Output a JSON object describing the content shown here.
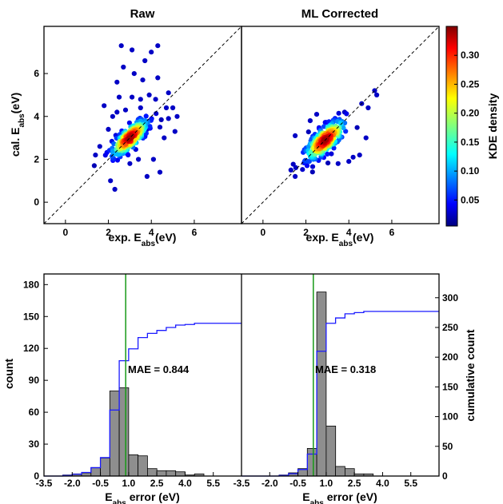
{
  "chart_data": [
    {
      "type": "scatter",
      "title": "Raw",
      "xlabel": "exp. E_abs(eV)",
      "ylabel": "cal. E_abs(eV)",
      "xlim": [
        -1,
        8.2
      ],
      "ylim": [
        -1,
        8.2
      ],
      "xticks": [
        "0",
        "2",
        "4",
        "6"
      ],
      "yticks": [
        "0",
        "2",
        "4",
        "6"
      ],
      "diagonal": "dashed y=x",
      "cluster": {
        "center": [
          3.0,
          3.0
        ],
        "spread_major": 0.6,
        "spread_minor": 0.22
      },
      "outliers": [
        [
          2.6,
          7.3
        ],
        [
          3.1,
          7.1
        ],
        [
          4.0,
          7.0
        ],
        [
          4.3,
          7.3
        ],
        [
          3.7,
          6.6
        ],
        [
          3.2,
          6.0
        ],
        [
          2.7,
          6.3
        ],
        [
          4.3,
          5.8
        ],
        [
          3.6,
          5.7
        ],
        [
          2.4,
          5.6
        ],
        [
          3.9,
          5.0
        ],
        [
          2.5,
          4.9
        ],
        [
          3.1,
          4.9
        ],
        [
          3.5,
          4.8
        ],
        [
          4.8,
          5.1
        ],
        [
          1.8,
          4.5
        ],
        [
          2.2,
          4.0
        ],
        [
          4.7,
          4.4
        ],
        [
          5.0,
          4.4
        ],
        [
          5.1,
          3.3
        ],
        [
          4.8,
          3.9
        ],
        [
          4.4,
          3.5
        ],
        [
          2.8,
          4.3
        ],
        [
          3.5,
          4.4
        ],
        [
          2.1,
          1.0
        ],
        [
          2.3,
          0.6
        ],
        [
          3.8,
          1.2
        ],
        [
          4.4,
          1.4
        ],
        [
          3.4,
          2.0
        ],
        [
          3.0,
          1.8
        ],
        [
          4.1,
          2.0
        ],
        [
          1.4,
          2.2
        ],
        [
          1.6,
          2.6
        ],
        [
          2.0,
          3.4
        ],
        [
          2.4,
          4.2
        ],
        [
          4.2,
          4.8
        ],
        [
          5.2,
          4.0
        ],
        [
          4.6,
          3.0
        ],
        [
          3.8,
          3.4
        ]
      ]
    },
    {
      "type": "scatter",
      "title": "ML Corrected",
      "xlabel": "exp. E_abs(eV)",
      "ylabel": "",
      "xlim": [
        -1,
        8.2
      ],
      "ylim": [
        -1,
        8.2
      ],
      "xticks": [
        "0",
        "2",
        "4",
        "6"
      ],
      "diagonal": "dashed y=x",
      "cluster": {
        "center": [
          2.9,
          2.9
        ],
        "spread_major": 0.65,
        "spread_minor": 0.25
      },
      "outliers": [
        [
          5.2,
          5.2
        ],
        [
          5.3,
          5.0
        ],
        [
          4.6,
          4.6
        ],
        [
          4.9,
          4.4
        ],
        [
          1.3,
          1.5
        ],
        [
          1.5,
          1.2
        ],
        [
          2.0,
          1.9
        ],
        [
          4.2,
          2.1
        ],
        [
          4.5,
          2.2
        ],
        [
          4.0,
          1.9
        ],
        [
          1.5,
          3.1
        ],
        [
          2.5,
          4.1
        ],
        [
          3.8,
          4.2
        ],
        [
          4.8,
          3.0
        ],
        [
          2.2,
          3.8
        ],
        [
          3.5,
          1.8
        ]
      ]
    },
    {
      "type": "bar",
      "title": "",
      "xlabel": "E_abs  error (eV)",
      "ylabel": "count",
      "y2label": "cumulative count",
      "xlim": [
        -3.5,
        7.0
      ],
      "ylim": [
        0,
        190
      ],
      "y2lim": [
        0,
        340
      ],
      "xticks": [
        "-3.5",
        "-2.0",
        "-0.5",
        "1.0",
        "2.5",
        "4.0",
        "5.5"
      ],
      "yticks": [
        "0",
        "30",
        "60",
        "90",
        "120",
        "150",
        "180"
      ],
      "y2ticks": [
        "0",
        "50",
        "100",
        "150",
        "200",
        "250",
        "300"
      ],
      "bin_edges": [
        -3.5,
        -3.0,
        -2.5,
        -2.0,
        -1.5,
        -1.0,
        -0.5,
        0.0,
        0.5,
        1.0,
        1.5,
        2.0,
        2.5,
        3.0,
        3.5,
        4.0,
        4.5,
        5.0,
        5.5,
        6.0,
        6.5,
        7.0
      ],
      "values": [
        0,
        0,
        1,
        2,
        3,
        8,
        17,
        80,
        83,
        20,
        19,
        7,
        5,
        5,
        4,
        1,
        2,
        0,
        0,
        0,
        0
      ],
      "mae_line_x": 0.844,
      "annotation": "MAE = 0.844"
    },
    {
      "type": "bar",
      "title": "",
      "xlabel": "E_abs  error (eV)",
      "ylabel": "",
      "y2label": "cumulative count",
      "xlim": [
        -3.5,
        7.0
      ],
      "ylim": [
        0,
        190
      ],
      "y2lim": [
        0,
        340
      ],
      "xticks": [
        "-3.5",
        "-2.0",
        "-0.5",
        "1.0",
        "2.5",
        "4.0",
        "5.5"
      ],
      "yticks": [],
      "y2ticks": [
        "0",
        "50",
        "100",
        "150",
        "200",
        "250",
        "300"
      ],
      "bin_edges": [
        -3.5,
        -3.0,
        -2.5,
        -2.0,
        -1.5,
        -1.0,
        -0.5,
        0.0,
        0.5,
        1.0,
        1.5,
        2.0,
        2.5,
        3.0,
        3.5,
        4.0,
        4.5,
        5.0,
        5.5,
        6.0,
        6.5,
        7.0
      ],
      "values": [
        0,
        0,
        0,
        0,
        1,
        3,
        7,
        26,
        173,
        47,
        9,
        7,
        2,
        2,
        0,
        0,
        0,
        0,
        0,
        0,
        0
      ],
      "mae_line_x": 0.318,
      "annotation": "MAE = 0.318"
    }
  ],
  "colorbar": {
    "label": "KDE density",
    "ticks": [
      "0.05",
      "0.10",
      "0.15",
      "0.20",
      "0.25",
      "0.30"
    ],
    "range": [
      0.005,
      0.35
    ]
  },
  "colors": {
    "histogram_bar": "#8e8e8e",
    "cumulative_line": "#1a1aff",
    "mae_line": "#179a17"
  }
}
